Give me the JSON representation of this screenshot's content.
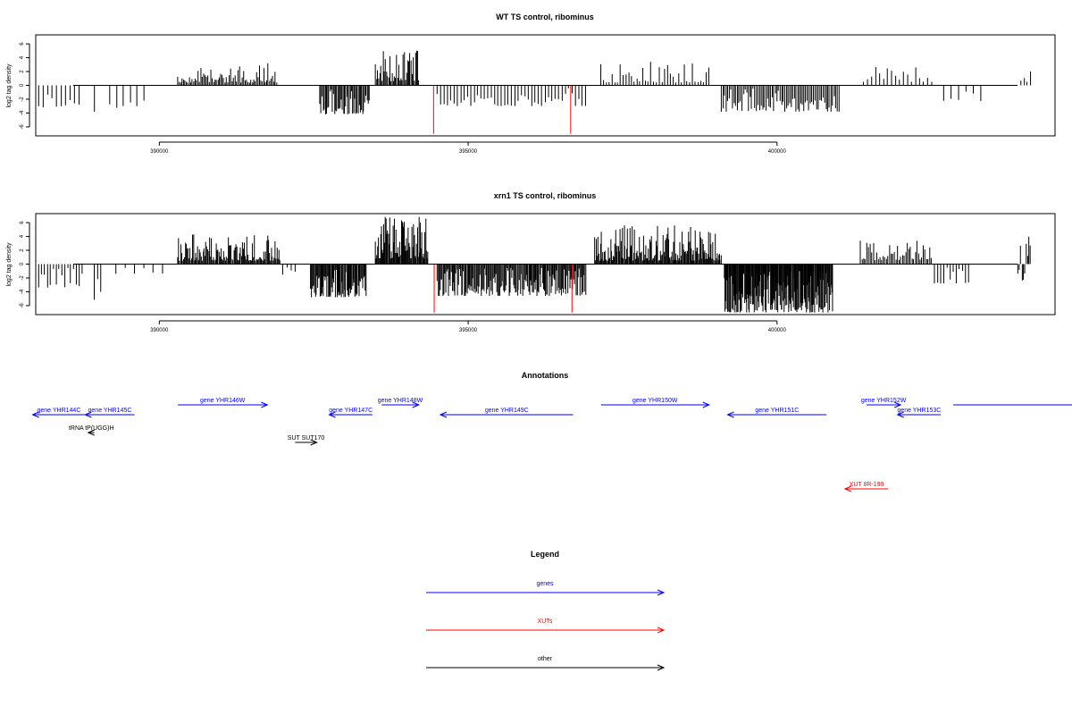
{
  "chart_data": [
    {
      "type": "bar",
      "title": "WT TS control, ribominus",
      "ylabel": "log2 tag density",
      "xlabel": "",
      "xlim": [
        388000,
        404500
      ],
      "ylim": [
        -7.3,
        7.3
      ],
      "yticks": [
        6,
        4,
        2,
        0,
        -2,
        -4,
        -6
      ],
      "xticks": [
        390000,
        395000,
        400000
      ],
      "xtick_labels": [
        "390000",
        "395000",
        "400000"
      ],
      "grid": false,
      "series": [
        {
          "color": "#000000",
          "regions": [
            {
              "from": 388050,
              "to": 388700,
              "min": -3.2,
              "max": -0.6,
              "n": 10,
              "seed": 11
            },
            {
              "from": 388950,
              "to": 389000,
              "min": -3.8,
              "max": -3.8,
              "n": 1,
              "seed": 12
            },
            {
              "from": 389200,
              "to": 389750,
              "min": -3.3,
              "max": -0.6,
              "n": 6,
              "seed": 13
            },
            {
              "from": 390300,
              "to": 391900,
              "min": 0.4,
              "max": 3.2,
              "n": 70,
              "seed": 14
            },
            {
              "from": 392600,
              "to": 393400,
              "min": -4.2,
              "max": -0.5,
              "n": 45,
              "seed": 15
            },
            {
              "from": 393500,
              "to": 394200,
              "min": 0.6,
              "max": 5.2,
              "n": 40,
              "seed": 16
            },
            {
              "from": 394500,
              "to": 396900,
              "min": -3.0,
              "max": -0.4,
              "n": 45,
              "seed": 17
            },
            {
              "from": 397150,
              "to": 398900,
              "min": 0.4,
              "max": 3.6,
              "n": 40,
              "seed": 18
            },
            {
              "from": 399100,
              "to": 401000,
              "min": -3.8,
              "max": -0.4,
              "n": 75,
              "seed": 19
            },
            {
              "from": 401400,
              "to": 402500,
              "min": 0.5,
              "max": 2.8,
              "n": 18,
              "seed": 20
            },
            {
              "from": 402700,
              "to": 403300,
              "min": -2.3,
              "max": -0.5,
              "n": 6,
              "seed": 21
            },
            {
              "from": 403950,
              "to": 404100,
              "min": 0.5,
              "max": 2.9,
              "n": 4,
              "seed": 22
            }
          ]
        },
        {
          "color": "#ff0000",
          "spikes": [
            [
              394440,
              -7.0
            ],
            [
              396660,
              -7.0
            ]
          ]
        }
      ]
    },
    {
      "type": "bar",
      "title": "xrn1 TS control, ribominus",
      "ylabel": "log2 tag density",
      "xlabel": "",
      "xlim": [
        388000,
        404500
      ],
      "ylim": [
        -7.3,
        7.3
      ],
      "yticks": [
        6,
        4,
        2,
        0,
        -2,
        -4,
        -6
      ],
      "xticks": [
        390000,
        395000,
        400000
      ],
      "xtick_labels": [
        "390000",
        "395000",
        "400000"
      ],
      "grid": false,
      "series": [
        {
          "color": "#000000",
          "regions": [
            {
              "from": 388050,
              "to": 388750,
              "min": -3.4,
              "max": -0.5,
              "n": 16,
              "seed": 31
            },
            {
              "from": 388950,
              "to": 389050,
              "min": -5.3,
              "max": -1.0,
              "n": 3,
              "seed": 32
            },
            {
              "from": 389300,
              "to": 390050,
              "min": -1.5,
              "max": -0.3,
              "n": 6,
              "seed": 33
            },
            {
              "from": 390300,
              "to": 391950,
              "min": 0.5,
              "max": 4.3,
              "n": 110,
              "seed": 34
            },
            {
              "from": 392000,
              "to": 392200,
              "min": -1.8,
              "max": -0.4,
              "n": 4,
              "seed": 35
            },
            {
              "from": 392450,
              "to": 393350,
              "min": -4.8,
              "max": -0.6,
              "n": 70,
              "seed": 36
            },
            {
              "from": 393500,
              "to": 394350,
              "min": 0.8,
              "max": 6.9,
              "n": 70,
              "seed": 37
            },
            {
              "from": 394500,
              "to": 396900,
              "min": -4.6,
              "max": -0.5,
              "n": 160,
              "seed": 38
            },
            {
              "from": 397050,
              "to": 399100,
              "min": 0.5,
              "max": 5.6,
              "n": 160,
              "seed": 39
            },
            {
              "from": 399150,
              "to": 400900,
              "min": -7.0,
              "max": -1.0,
              "n": 190,
              "seed": 40
            },
            {
              "from": 401350,
              "to": 402500,
              "min": 0.6,
              "max": 3.4,
              "n": 45,
              "seed": 41
            },
            {
              "from": 402550,
              "to": 403100,
              "min": -2.8,
              "max": -0.5,
              "n": 12,
              "seed": 42
            },
            {
              "from": 403900,
              "to": 404100,
              "min": -2.6,
              "max": 4.2,
              "n": 10,
              "seed": 43
            }
          ]
        },
        {
          "color": "#ff0000",
          "spikes": [
            [
              394450,
              -7.0
            ],
            [
              396680,
              -7.0
            ]
          ]
        }
      ]
    }
  ],
  "annotations": {
    "title": "Annotations",
    "items": [
      {
        "label": "gene YHR144C",
        "from": 388800,
        "to": 387950,
        "row": 1,
        "color": "#0000ff"
      },
      {
        "label": "gene YHR145C",
        "from": 389600,
        "to": 388800,
        "row": 1,
        "color": "#0000ff"
      },
      {
        "label": "tRNA tP(UGG)H",
        "from": 388950,
        "to": 388850,
        "row": 2,
        "color": "#000000"
      },
      {
        "label": "gene YHR146W",
        "from": 390300,
        "to": 391750,
        "row": 0,
        "color": "#0000ff"
      },
      {
        "label": "SUT SUT170",
        "from": 392200,
        "to": 392550,
        "row": 3,
        "color": "#000000"
      },
      {
        "label": "gene YHR147C",
        "from": 393450,
        "to": 392750,
        "row": 1,
        "color": "#0000ff"
      },
      {
        "label": "gene YHR148W",
        "from": 393600,
        "to": 394200,
        "row": 0,
        "color": "#0000ff"
      },
      {
        "label": "gene YHR149C",
        "from": 396700,
        "to": 394550,
        "row": 1,
        "color": "#0000ff"
      },
      {
        "label": "gene YHR150W",
        "from": 397150,
        "to": 398900,
        "row": 0,
        "color": "#0000ff"
      },
      {
        "label": "gene YHR151C",
        "from": 400800,
        "to": 399200,
        "row": 1,
        "color": "#0000ff"
      },
      {
        "label": "gene YHR152W",
        "from": 401450,
        "to": 402000,
        "row": 0,
        "color": "#0000ff"
      },
      {
        "label": "gene YHR153C",
        "from": 402650,
        "to": 401950,
        "row": 1,
        "color": "#0000ff"
      },
      {
        "label": "",
        "from": 402850,
        "to": 404600,
        "row": 0,
        "color": "#0000ff"
      },
      {
        "label": "XUT 8R-199",
        "from": 401800,
        "to": 401100,
        "row": 4,
        "color": "#ff0000"
      }
    ]
  },
  "legend": {
    "title": "Legend",
    "items": [
      {
        "label": "genes",
        "color": "#0000ff"
      },
      {
        "label": "XUTs",
        "color": "#ff0000"
      },
      {
        "label": "other",
        "color": "#000000"
      }
    ]
  }
}
